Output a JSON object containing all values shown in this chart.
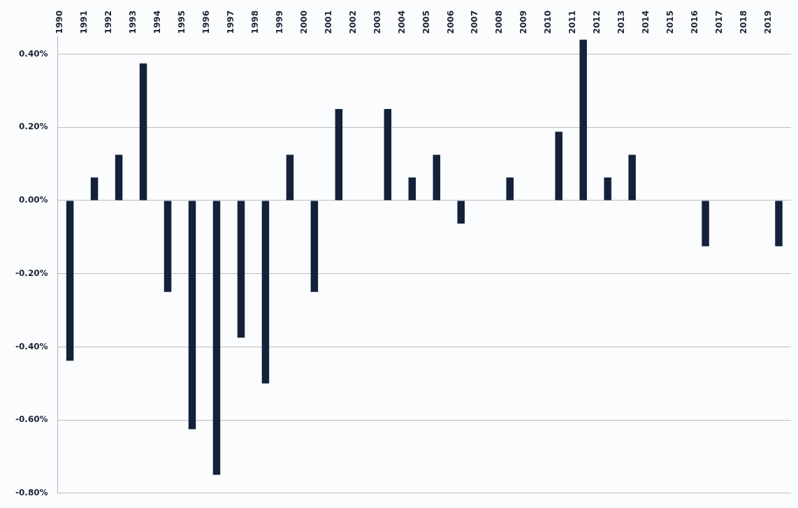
{
  "chart_data": {
    "type": "bar",
    "categories": [
      "1990",
      "1991",
      "1992",
      "1993",
      "1994",
      "1995",
      "1996",
      "1997",
      "1998",
      "1999",
      "2000",
      "2001",
      "2002",
      "2003",
      "2004",
      "2005",
      "2006",
      "2007",
      "2008",
      "2009",
      "2010",
      "2011",
      "2012",
      "2013",
      "2014",
      "2015",
      "2016",
      "2017",
      "2018",
      "2019"
    ],
    "values": [
      -0.438,
      0.063,
      0.125,
      0.375,
      -0.25,
      -0.625,
      -0.75,
      -0.375,
      -0.5,
      0.125,
      -0.25,
      0.25,
      0,
      0.25,
      0.063,
      0.125,
      -0.063,
      0,
      0.063,
      0,
      0.188,
      0.44,
      0.063,
      0.125,
      0,
      0,
      -0.125,
      0,
      0,
      -0.125
    ],
    "color": "#13213a",
    "ylim": [
      -0.8,
      0.45
    ],
    "yticks": [
      {
        "value": -0.8,
        "label": "-0.80%"
      },
      {
        "value": -0.6,
        "label": "-0.60%"
      },
      {
        "value": -0.4,
        "label": "-0.40%"
      },
      {
        "value": -0.2,
        "label": "-0.20%"
      },
      {
        "value": 0,
        "label": "0.00%"
      },
      {
        "value": 0.2,
        "label": "0.20%"
      },
      {
        "value": 0.4,
        "label": "0.40%"
      }
    ],
    "grid": "y"
  }
}
